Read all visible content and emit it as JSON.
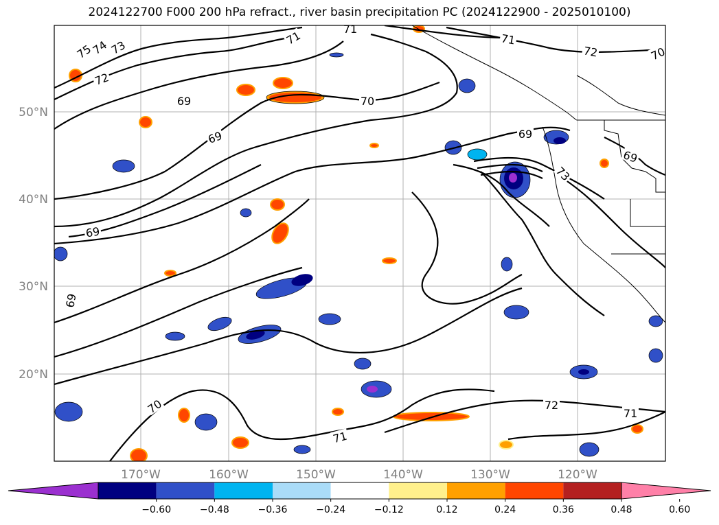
{
  "title": "2024122700 F000 200 hPa refract., river basin precipitation PC (2024122900 - 2025010100)",
  "map": {
    "lat_labels": [
      "50°N",
      "40°N",
      "30°N",
      "20°N"
    ],
    "lon_labels": [
      "170°W",
      "160°W",
      "150°W",
      "140°W",
      "130°W",
      "120°W"
    ],
    "contour_labels": [
      "75",
      "74",
      "73",
      "72",
      "71",
      "71",
      "71",
      "72",
      "70",
      "69",
      "69",
      "70",
      "69",
      "69",
      "73",
      "69",
      "69",
      "70",
      "71",
      "72",
      "71"
    ]
  },
  "colorbar": {
    "ticks": [
      "−0.60",
      "−0.48",
      "−0.36",
      "−0.24",
      "−0.12",
      "0.12",
      "0.24",
      "0.36",
      "0.48",
      "0.60"
    ],
    "colors": [
      "#9b30d0",
      "#000080",
      "#3050c8",
      "#00b4f0",
      "#aadcf8",
      "#ffffff",
      "#fff08c",
      "#ffa000",
      "#ff4600",
      "#b42020",
      "#ff80a8"
    ]
  }
}
